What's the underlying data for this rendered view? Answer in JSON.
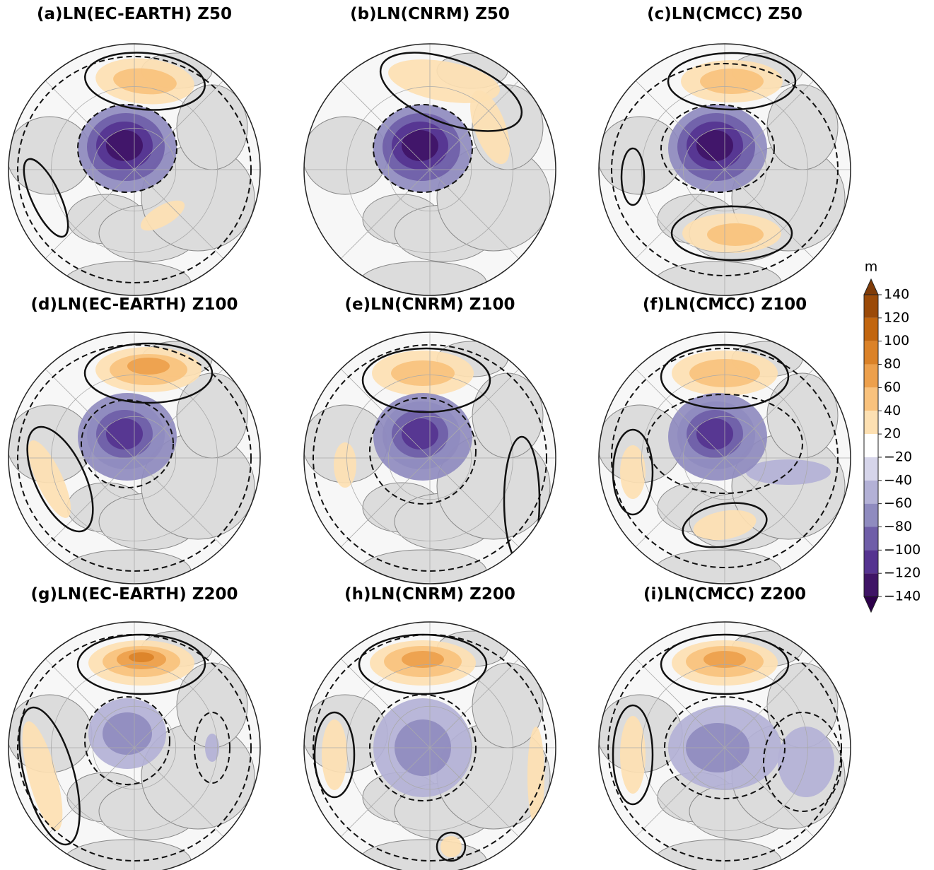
{
  "panels": [
    {
      "title": "(a)LN(EC-EARTH) Z50"
    },
    {
      "title": "(b)LN(CNRM) Z50"
    },
    {
      "title": "(c)LN(CMCC) Z50"
    },
    {
      "title": "(d)LN(EC-EARTH) Z100"
    },
    {
      "title": "(e)LN(CNRM) Z100"
    },
    {
      "title": "(f)LN(CMCC) Z100"
    },
    {
      "title": "(g)LN(EC-EARTH) Z200"
    },
    {
      "title": "(h)LN(CNRM) Z200"
    },
    {
      "title": "(i)LN(CMCC) Z200"
    }
  ],
  "colorbar": {
    "label": "m",
    "ticks": [
      140,
      120,
      100,
      80,
      60,
      40,
      20,
      {
        "value": -20,
        "label": "−20"
      },
      {
        "value": -40,
        "label": "−40"
      },
      {
        "value": -60,
        "label": "−60"
      },
      {
        "value": -80,
        "label": "−80"
      },
      {
        "value": -100,
        "label": "−100"
      },
      {
        "value": -120,
        "label": "−120"
      },
      {
        "value": -140,
        "label": "−140"
      }
    ],
    "colors": [
      "#9b4a08",
      "#c2660f",
      "#db8228",
      "#eda04c",
      "#f9c27d",
      "#fde0b2",
      "#ffffff",
      "#d6d5ea",
      "#b3b1d6",
      "#8f8bbf",
      "#6f5ea8",
      "#553390",
      "#3f1466"
    ],
    "extend_colors": [
      "#7f3b08",
      "#2d004b"
    ]
  }
}
